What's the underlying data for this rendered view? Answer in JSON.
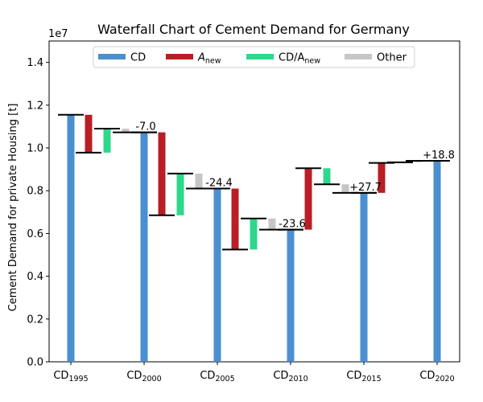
{
  "chart_data": {
    "type": "bar",
    "subtype": "waterfall",
    "title": "Waterfall Chart of Cement Demand for Germany",
    "ylabel": "Cement Demand for private Housing [t]",
    "y_multiplier_label": "1e7",
    "ylim": [
      0,
      1.5
    ],
    "y_scale_factor": 10000000,
    "y_ticks": [
      {
        "value": 0.0,
        "label": "0.0"
      },
      {
        "value": 0.2,
        "label": "0.2"
      },
      {
        "value": 0.4,
        "label": "0.4"
      },
      {
        "value": 0.6,
        "label": "0.6"
      },
      {
        "value": 0.8,
        "label": "0.8"
      },
      {
        "value": 1.0,
        "label": "1.0"
      },
      {
        "value": 1.2,
        "label": "1.2"
      },
      {
        "value": 1.4,
        "label": "1.4"
      }
    ],
    "grid": false,
    "legend_position": "top-center",
    "colors": {
      "CD": "#4a8fcf",
      "A_new": "#b81f24",
      "CD_A_new": "#2ed88a",
      "Other": "#c6c6c6"
    },
    "legend": [
      {
        "key": "CD",
        "label": "CD",
        "sub": ""
      },
      {
        "key": "A_new",
        "label": "A",
        "sub": "new",
        "italic": true
      },
      {
        "key": "CD_A_new",
        "label": "CD/A",
        "sub": "new"
      },
      {
        "key": "Other",
        "label": "Other",
        "sub": ""
      }
    ],
    "categories": [
      {
        "label": "CD",
        "sub": "1995"
      },
      {
        "label": "CD",
        "sub": "2000"
      },
      {
        "label": "CD",
        "sub": "2005"
      },
      {
        "label": "CD",
        "sub": "2010"
      },
      {
        "label": "CD",
        "sub": "2015"
      },
      {
        "label": "CD",
        "sub": "2020"
      }
    ],
    "cd_values": [
      1.155,
      1.073,
      0.81,
      0.618,
      0.79,
      0.94
    ],
    "steps": [
      [
        {
          "series": "A_new",
          "from": 1.155,
          "to": 0.978
        },
        {
          "series": "CD_A_new",
          "from": 0.978,
          "to": 1.09
        },
        {
          "series": "Other",
          "from": 1.09,
          "to": 1.073
        }
      ],
      [
        {
          "series": "A_new",
          "from": 1.073,
          "to": 0.685
        },
        {
          "series": "CD_A_new",
          "from": 0.685,
          "to": 0.88
        },
        {
          "series": "Other",
          "from": 0.88,
          "to": 0.81
        }
      ],
      [
        {
          "series": "A_new",
          "from": 0.81,
          "to": 0.525
        },
        {
          "series": "CD_A_new",
          "from": 0.525,
          "to": 0.67
        },
        {
          "series": "Other",
          "from": 0.67,
          "to": 0.618
        }
      ],
      [
        {
          "series": "A_new",
          "from": 0.618,
          "to": 0.905
        },
        {
          "series": "CD_A_new",
          "from": 0.905,
          "to": 0.83
        },
        {
          "series": "Other",
          "from": 0.83,
          "to": 0.79
        }
      ],
      [
        {
          "series": "A_new",
          "from": 0.79,
          "to": 0.93
        },
        {
          "series": "CD_A_new",
          "from": 0.93,
          "to": 0.933
        },
        {
          "series": "Other",
          "from": 0.933,
          "to": 0.94
        }
      ]
    ],
    "annotations": [
      {
        "text": "-7.0",
        "after_period": 0
      },
      {
        "text": "-24.4",
        "after_period": 1
      },
      {
        "text": "-23.6",
        "after_period": 2
      },
      {
        "text": "+27.7",
        "after_period": 3
      },
      {
        "text": "+18.8",
        "after_period": 4
      }
    ]
  }
}
